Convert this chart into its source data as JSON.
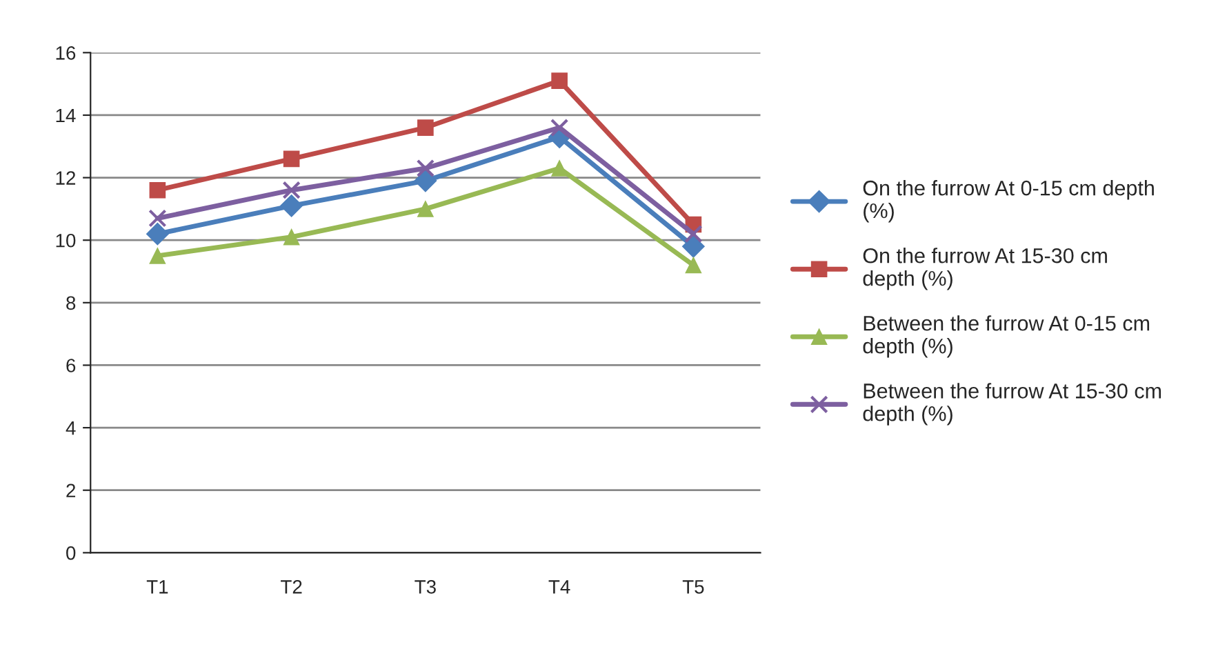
{
  "chart_data": {
    "type": "line",
    "categories": [
      "T1",
      "T2",
      "T3",
      "T4",
      "T5"
    ],
    "ylim": [
      0,
      16
    ],
    "yticks": [
      0,
      2,
      4,
      6,
      8,
      10,
      12,
      14,
      16
    ],
    "grid": "y",
    "legend": "right",
    "line_style": "solid",
    "series": [
      {
        "name": "On the furrow At 0-15 cm depth (%)",
        "color": "#4a7ebb",
        "marker": "diamond",
        "values": [
          10.2,
          11.1,
          11.9,
          13.3,
          9.8
        ]
      },
      {
        "name": "On the furrow At 15-30 cm depth (%)",
        "color": "#be4b48",
        "marker": "square",
        "values": [
          11.6,
          12.6,
          13.6,
          15.1,
          10.5
        ]
      },
      {
        "name": "Between the furrow At 0-15 cm depth (%)",
        "color": "#98b954",
        "marker": "triangle",
        "values": [
          9.5,
          10.1,
          11.0,
          12.3,
          9.2
        ]
      },
      {
        "name": "Between the furrow At 15-30 cm depth (%)",
        "color": "#7d5fa0",
        "marker": "cross",
        "values": [
          10.7,
          11.6,
          12.3,
          13.6,
          10.2
        ]
      }
    ]
  }
}
